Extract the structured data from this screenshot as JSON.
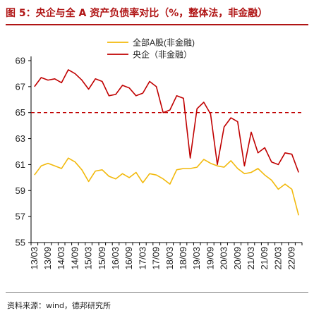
{
  "header": {
    "title": "图 5：央企与全 A 资产负债率对比（%，整体法，非金融）"
  },
  "footer": {
    "source": "资料来源：wind，德邦研究所"
  },
  "chart_data": {
    "type": "line",
    "x": [
      "13/03",
      "13/06",
      "13/09",
      "13/12",
      "14/03",
      "14/06",
      "14/09",
      "14/12",
      "15/03",
      "15/06",
      "15/09",
      "15/12",
      "16/03",
      "16/06",
      "16/09",
      "16/12",
      "17/03",
      "17/06",
      "17/09",
      "17/12",
      "18/03",
      "18/06",
      "18/09",
      "18/12",
      "19/03",
      "19/06",
      "19/09",
      "19/12",
      "20/03",
      "20/06",
      "20/09",
      "20/12",
      "21/03",
      "21/06",
      "21/09",
      "21/12",
      "22/03",
      "22/06",
      "22/09",
      "22/12"
    ],
    "x_tick_labels": [
      "13/03",
      "13/09",
      "14/03",
      "14/09",
      "15/03",
      "15/09",
      "16/03",
      "16/09",
      "17/03",
      "17/09",
      "18/03",
      "18/09",
      "19/03",
      "19/09",
      "20/03",
      "20/09",
      "21/03",
      "21/09",
      "22/03",
      "22/09"
    ],
    "ylim": [
      55,
      69
    ],
    "yticks": [
      55,
      57,
      59,
      61,
      63,
      65,
      67,
      69
    ],
    "grid": false,
    "legend_position": "top-center",
    "reference_line": {
      "y": 65,
      "style": "dashed",
      "color": "#c00000"
    },
    "series": [
      {
        "name": "全部A股(非金融)",
        "color": "#f2b90c",
        "values": [
          60.2,
          60.9,
          61.1,
          60.9,
          60.7,
          61.5,
          61.2,
          60.6,
          59.7,
          60.5,
          60.6,
          60.1,
          59.9,
          60.3,
          60.0,
          60.4,
          59.6,
          60.3,
          60.2,
          59.9,
          59.5,
          60.6,
          60.7,
          60.7,
          60.8,
          61.4,
          61.1,
          60.9,
          60.8,
          61.3,
          60.7,
          60.3,
          60.4,
          60.7,
          60.2,
          59.8,
          59.1,
          59.5,
          59.1,
          57.1
        ]
      },
      {
        "name": "央企（非金融）",
        "color": "#c00000",
        "values": [
          67.0,
          67.7,
          67.5,
          67.6,
          67.3,
          68.3,
          68.0,
          67.5,
          66.8,
          67.6,
          67.4,
          66.3,
          66.4,
          67.1,
          66.9,
          66.3,
          66.5,
          67.4,
          67.0,
          65.0,
          65.2,
          66.3,
          66.1,
          61.5,
          65.3,
          65.8,
          64.9,
          61.0,
          63.9,
          64.6,
          64.3,
          60.9,
          63.5,
          61.9,
          62.3,
          61.2,
          61.0,
          61.9,
          61.8,
          60.4
        ]
      }
    ]
  }
}
